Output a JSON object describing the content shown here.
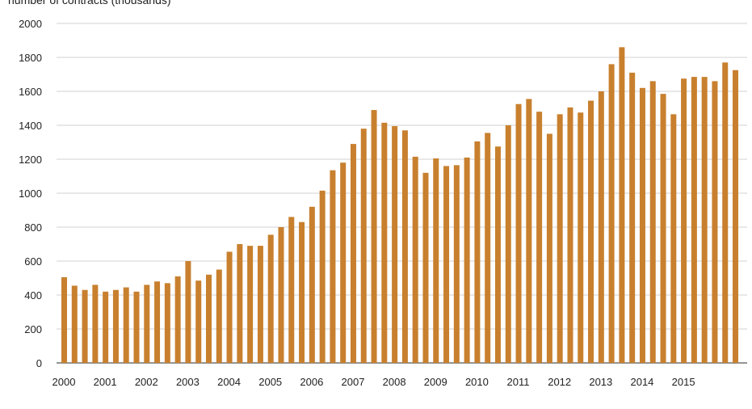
{
  "chart_data": {
    "type": "bar",
    "title": "",
    "ylabel": "number of contracts (thousands)",
    "xlabel": "",
    "ylim": [
      0,
      2000
    ],
    "yticks": [
      "0",
      "200",
      "400",
      "600",
      "800",
      "1000",
      "1200",
      "1400",
      "1600",
      "1800",
      "2000"
    ],
    "grid": true,
    "bar_color": "#c8802e",
    "grid_color": "#d0d0d0",
    "x_year_labels": [
      "2000",
      "2001",
      "2002",
      "2003",
      "2004",
      "2005",
      "2006",
      "2007",
      "2008",
      "2009",
      "2010",
      "2011",
      "2012",
      "2013",
      "2014",
      "2015"
    ],
    "values": [
      505,
      455,
      430,
      460,
      420,
      430,
      445,
      420,
      460,
      480,
      470,
      510,
      600,
      485,
      520,
      550,
      655,
      700,
      690,
      690,
      755,
      800,
      860,
      830,
      920,
      1015,
      1135,
      1180,
      1290,
      1380,
      1490,
      1415,
      1395,
      1370,
      1215,
      1120,
      1205,
      1160,
      1165,
      1210,
      1305,
      1355,
      1275,
      1400,
      1525,
      1555,
      1480,
      1350,
      1465,
      1505,
      1475,
      1545,
      1600,
      1760,
      1860,
      1710,
      1620,
      1660,
      1585,
      1465,
      1675,
      1685,
      1685,
      1660,
      1770,
      1725
    ]
  }
}
